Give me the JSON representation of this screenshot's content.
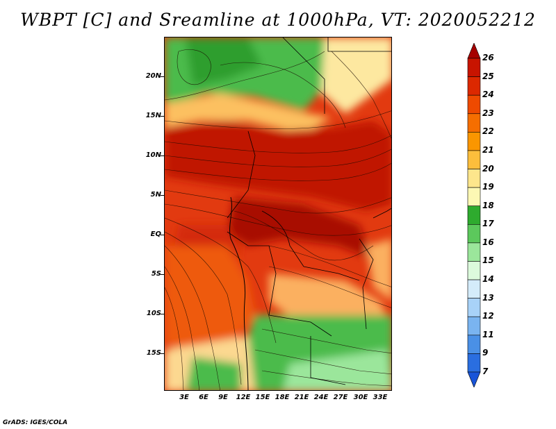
{
  "title": "WBPT [C] and Sreamline at 1000hPa, VT: 2020052212",
  "footer": "GrADS: IGES/COLA",
  "latitude_labels": [
    "20N",
    "15N",
    "10N",
    "5N",
    "EQ",
    "5S",
    "10S",
    "15S"
  ],
  "longitude_labels": [
    "3E",
    "6E",
    "9E",
    "12E",
    "15E",
    "18E",
    "21E",
    "24E",
    "27E",
    "30E",
    "33E"
  ],
  "colorbar": {
    "labels": [
      "26",
      "25",
      "24",
      "23",
      "22",
      "21",
      "20",
      "19",
      "18",
      "17",
      "16",
      "15",
      "14",
      "13",
      "12",
      "11",
      "9",
      "7"
    ],
    "colors": [
      "#a50000",
      "#c81400",
      "#dc2800",
      "#ee4a00",
      "#f56e00",
      "#fa9600",
      "#fcbe3c",
      "#fde68c",
      "#fcf8b4",
      "#2eab2e",
      "#5cc85c",
      "#9be69b",
      "#dcfadc",
      "#d4ecfa",
      "#a8d2f8",
      "#7ab4f0",
      "#4a90e6",
      "#2a6ee0",
      "#1854d8"
    ]
  },
  "colors": {
    "land_green": "#4cbb4c",
    "deep_red": "#c02000",
    "orange": "#f07020",
    "cream": "#fde8a0"
  }
}
